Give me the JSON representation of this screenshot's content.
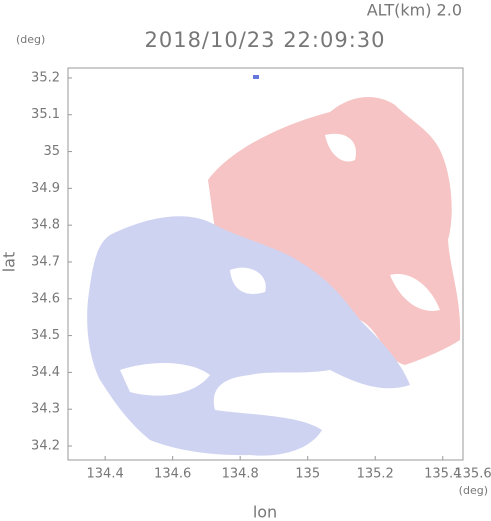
{
  "chart_data": {
    "type": "map",
    "title": "2018/10/23 22:09:30",
    "altitude_label": "ALT(km) 2.0",
    "x_label": "lon",
    "y_label": "lat",
    "x_unit": "(deg)",
    "y_unit": "(deg)",
    "xlim": [
      134.29,
      135.46
    ],
    "ylim": [
      34.162,
      35.227
    ],
    "xticks": [
      134.4,
      134.6,
      134.8,
      135.0,
      135.2,
      135.4,
      135.6
    ],
    "yticks": [
      34.2,
      34.3,
      34.4,
      34.5,
      34.6,
      34.7,
      34.8,
      34.9,
      35.0,
      35.1,
      35.2
    ]
  }
}
